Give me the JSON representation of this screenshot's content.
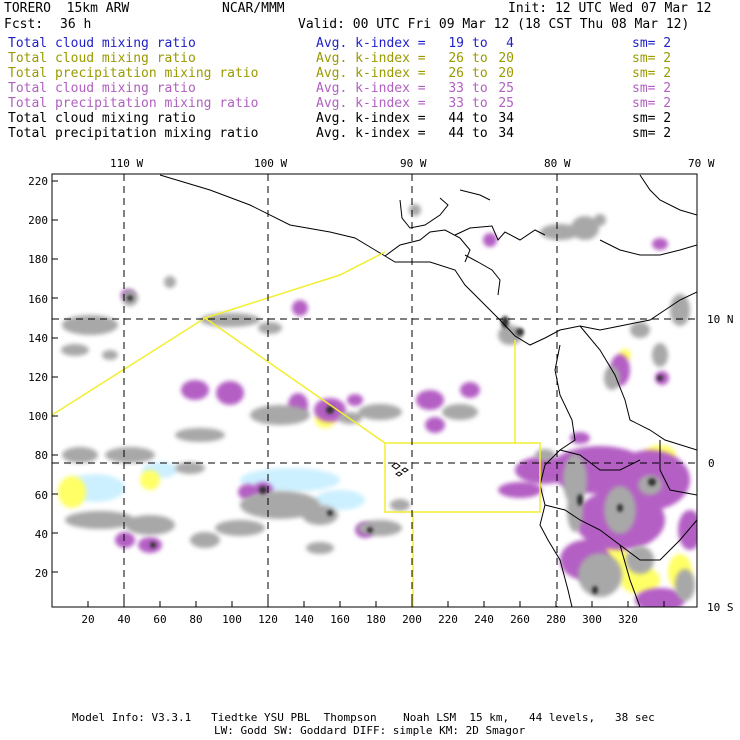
{
  "header": {
    "model": "TORERO  15km ARW",
    "org": "NCAR/MMM",
    "init": "Init: 12 UTC Wed 07 Mar 12",
    "fcst_label": "Fcst:",
    "fcst_value": "36 h",
    "valid": "Valid: 00 UTC Fri 09 Mar 12 (18 CST Thu 08 Mar 12)"
  },
  "legend": [
    {
      "field": "Total cloud mixing ratio",
      "idx_label": "Avg. k-index =",
      "hi": "19",
      "to": "to",
      "lo": "4",
      "sm": "sm= 2",
      "color": "#1f1fc8"
    },
    {
      "field": "Total cloud mixing ratio",
      "idx_label": "Avg. k-index =",
      "hi": "26",
      "to": "to",
      "lo": "20",
      "sm": "sm= 2",
      "color": "#9a9a00"
    },
    {
      "field": "Total precipitation mixing ratio",
      "idx_label": "Avg. k-index =",
      "hi": "26",
      "to": "to",
      "lo": "20",
      "sm": "sm= 2",
      "color": "#9a9a00"
    },
    {
      "field": "Total cloud mixing ratio",
      "idx_label": "Avg. k-index =",
      "hi": "33",
      "to": "to",
      "lo": "25",
      "sm": "sm= 2",
      "color": "#b060c0"
    },
    {
      "field": "Total precipitation mixing ratio",
      "idx_label": "Avg. k-index =",
      "hi": "33",
      "to": "to",
      "lo": "25",
      "sm": "sm= 2",
      "color": "#b060c0"
    },
    {
      "field": "Total cloud mixing ratio",
      "idx_label": "Avg. k-index =",
      "hi": "44",
      "to": "to",
      "lo": "34",
      "sm": "sm= 2",
      "color": "#000000"
    },
    {
      "field": "Total precipitation mixing ratio",
      "idx_label": "Avg. k-index =",
      "hi": "44",
      "to": "to",
      "lo": "34",
      "sm": "sm= 2",
      "color": "#000000"
    }
  ],
  "axes": {
    "lon_labels": [
      "110 W",
      "100 W",
      "90 W",
      "80 W",
      "70 W"
    ],
    "lat_labels": [
      "10 N",
      "0",
      "10 S"
    ],
    "y_ticks": [
      "220",
      "200",
      "180",
      "160",
      "140",
      "120",
      "100",
      "80",
      "60",
      "40",
      "20"
    ],
    "x_ticks": [
      "20",
      "40",
      "60",
      "80",
      "100",
      "120",
      "140",
      "160",
      "180",
      "200",
      "220",
      "240",
      "260",
      "280",
      "300",
      "320"
    ]
  },
  "colors": {
    "gray_cloud": "#a8a8a8",
    "dark_core": "#303030",
    "purple": "#b45ec4",
    "yellow": "#ffff66",
    "cyan": "#ccf0ff",
    "domain_box": "#f2ee30"
  },
  "footer": {
    "line1": "Model Info: V3.3.1   Tiedtke YSU PBL  Thompson    Noah LSM  15 km,   44 levels,   38 sec",
    "line2": "LW: Godd SW: Goddard DIFF: simple KM: 2D Smagor"
  }
}
